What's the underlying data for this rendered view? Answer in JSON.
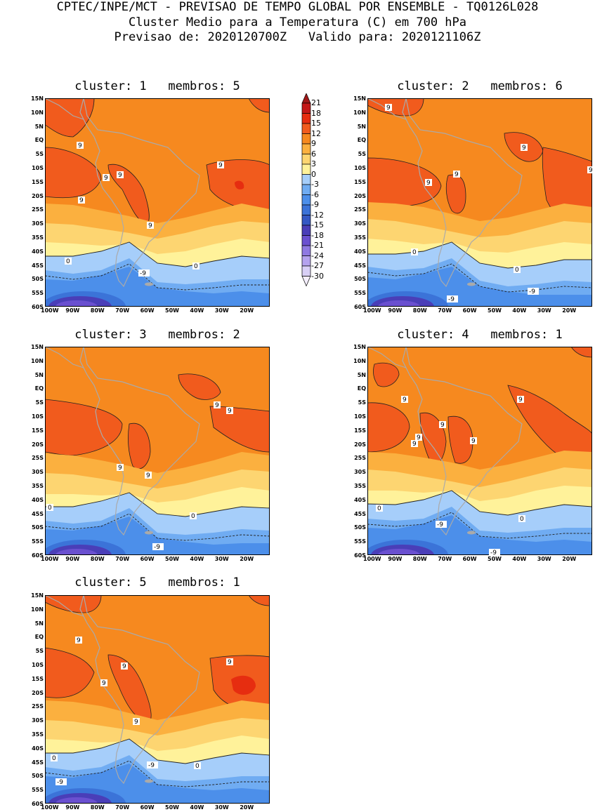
{
  "header": {
    "line1": "CPTEC/INPE/MCT - PREVISAO DE TEMPO GLOBAL POR ENSEMBLE - TQ0126L028",
    "line2": "Cluster Medio para a Temperatura (C) em 700 hPa",
    "line3": "Previsao de: 2020120700Z   Valido para: 2020121106Z"
  },
  "panels": [
    {
      "title": "cluster: 1   membros: 5"
    },
    {
      "title": "cluster: 2   membros: 6"
    },
    {
      "title": "cluster: 3   membros: 2"
    },
    {
      "title": "cluster: 4   membros: 1"
    },
    {
      "title": "cluster: 5   membros: 1"
    }
  ],
  "axes": {
    "lat_ticks": [
      "15N",
      "10N",
      "5N",
      "EQ",
      "5S",
      "10S",
      "15S",
      "20S",
      "25S",
      "30S",
      "35S",
      "40S",
      "45S",
      "50S",
      "55S",
      "60S"
    ],
    "lon_ticks": [
      "100W",
      "90W",
      "80W",
      "70W",
      "60W",
      "50W",
      "40W",
      "30W",
      "20W"
    ]
  },
  "colorbar": {
    "labels": [
      "21",
      "18",
      "15",
      "12",
      "9",
      "6",
      "3",
      "0",
      "-3",
      "-6",
      "-9",
      "-12",
      "-15",
      "-18",
      "-21",
      "-24",
      "-27",
      "-30"
    ],
    "colors": [
      "#a01818",
      "#c41818",
      "#e62d10",
      "#f15b1d",
      "#f6891f",
      "#fbb03f",
      "#fdd571",
      "#fff29a",
      "#a6cefa",
      "#70acf2",
      "#4c8fea",
      "#3b73d8",
      "#3458c4",
      "#4a3eb8",
      "#6a50d0",
      "#8f79e2",
      "#b4a2ee",
      "#d8cff6",
      "#f4eefc"
    ]
  },
  "contour_labels": {
    "nine": "9",
    "zero": "0",
    "neg_nine": "-9"
  }
}
